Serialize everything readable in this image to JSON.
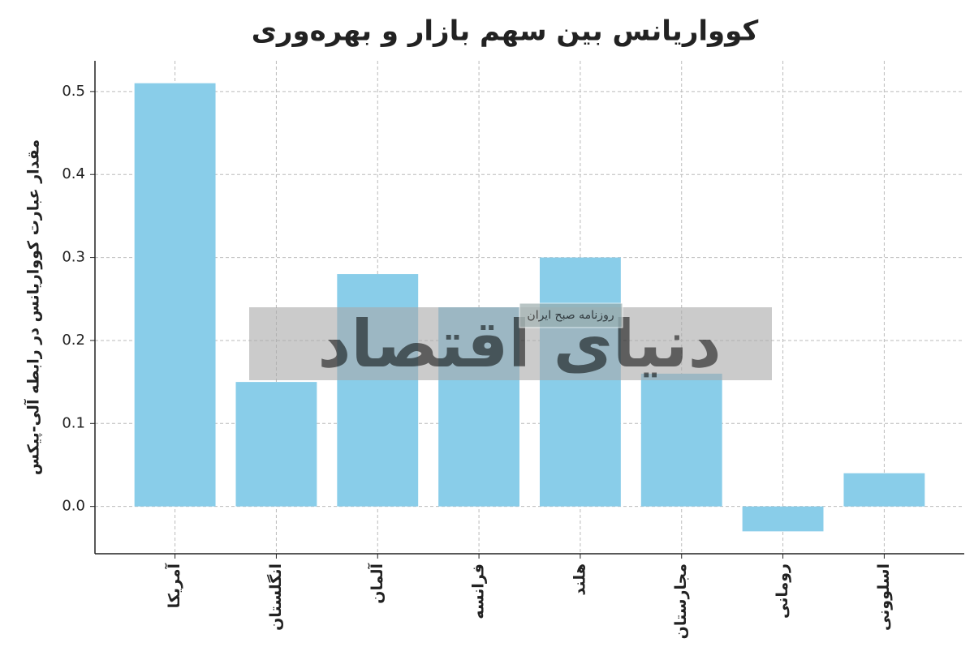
{
  "chart_data": {
    "type": "bar",
    "title": "کوواریانس بین سهم بازار و بهره‌وری",
    "y_label": "مقدار عبارت کوواریانس در رابطه آلی-پیکس",
    "categories": [
      "آمریکا",
      "انگلستان",
      "آلمان",
      "فرانسه",
      "هلند",
      "مجارستان",
      "رومانی",
      "اسلوونی"
    ],
    "values": [
      0.51,
      0.15,
      0.28,
      0.24,
      0.3,
      0.16,
      -0.03,
      0.04
    ],
    "color": "#89cde9",
    "ylim": [
      -0.057,
      0.537
    ],
    "yticks": [
      {
        "value": 0,
        "label": "0.0"
      },
      0.1,
      0.2,
      0.3,
      0.4,
      0.5
    ],
    "grid": true,
    "watermark": {
      "logo": "دنیای اقتصاد",
      "tagline": "روزنامه صبح ایران"
    }
  }
}
